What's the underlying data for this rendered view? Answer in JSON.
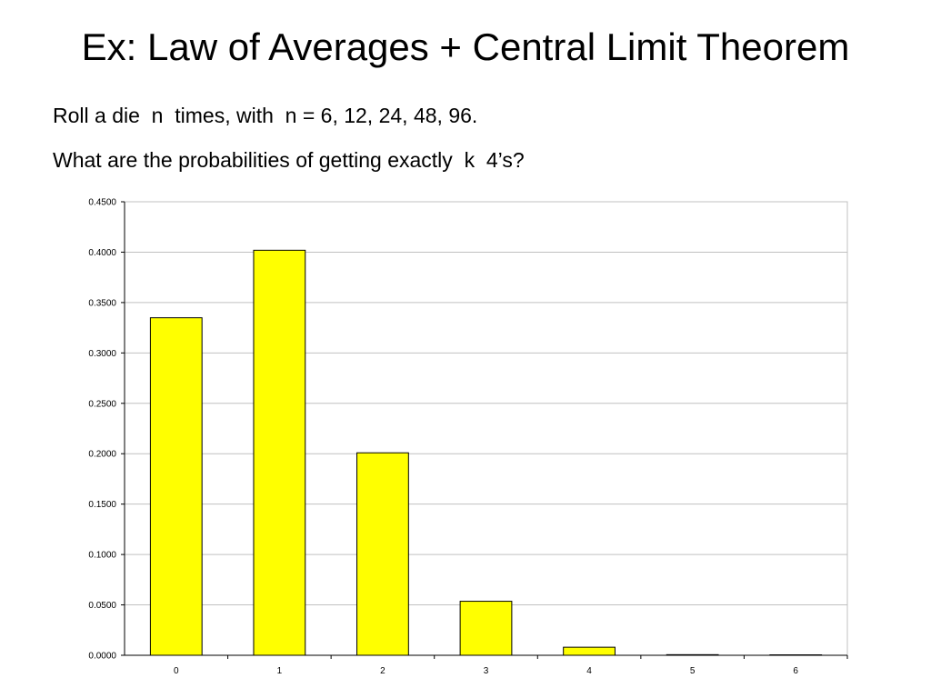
{
  "slide": {
    "title": "Ex: Law of Averages + Central Limit Theorem",
    "line1": "Roll a die  n  times, with  n = 6, 12, 24, 48, 96.",
    "line2": "What are the probabilities of getting exactly  k  4’s?"
  },
  "chart_data": {
    "type": "bar",
    "categories": [
      "0",
      "1",
      "2",
      "3",
      "4",
      "5",
      "6"
    ],
    "values": [
      0.3349,
      0.4019,
      0.2009,
      0.0536,
      0.008,
      0.0006,
      2e-05
    ],
    "ylim": [
      0,
      0.45
    ],
    "yticks": [
      "0.0000",
      "0.0500",
      "0.1000",
      "0.1500",
      "0.2000",
      "0.2500",
      "0.3000",
      "0.3500",
      "0.4000",
      "0.4500"
    ],
    "title": "",
    "xlabel": "",
    "ylabel": "",
    "grid": true,
    "legend": "none",
    "bar_color": "#FFFF00",
    "bar_outline": "#000000",
    "grid_color": "#C0C0C0"
  }
}
